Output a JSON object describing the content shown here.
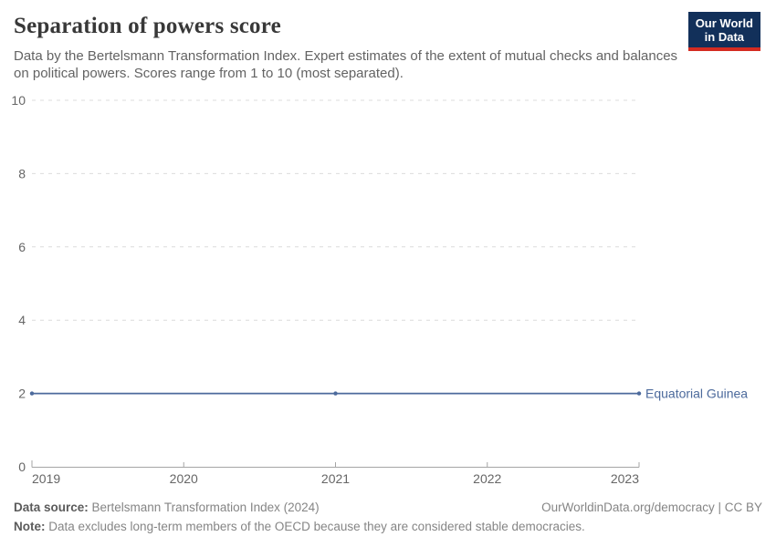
{
  "header": {
    "title": "Separation of powers score",
    "subtitle": "Data by the Bertelsmann Transformation Index. Expert estimates of the extent of mutual checks and balances on political powers. Scores range from 1 to 10 (most separated).",
    "logo": {
      "line1": "Our World",
      "line2": "in Data"
    }
  },
  "chart_data": {
    "type": "line",
    "title": "Separation of powers score",
    "x": [
      2019,
      2021,
      2023
    ],
    "series": [
      {
        "name": "Equatorial Guinea",
        "values": [
          2,
          2,
          2
        ],
        "color": "#4c6a9c"
      }
    ],
    "xlabel": "",
    "ylabel": "",
    "xlim": [
      2019,
      2023
    ],
    "ylim": [
      0,
      10
    ],
    "xticks": [
      2019,
      2020,
      2021,
      2022,
      2023
    ],
    "yticks": [
      0,
      2,
      4,
      6,
      8,
      10
    ],
    "grid": "horizontal-dashed",
    "legend_position": "end-of-line-label",
    "colors": {
      "gridline": "#dcdcdc",
      "axis": "#a5a5a5",
      "tick_label": "#666666"
    }
  },
  "footer": {
    "source_label": "Data source:",
    "source_text": " Bertelsmann Transformation Index (2024)",
    "rights_text": "OurWorldinData.org/democracy | CC BY",
    "note_label": "Note:",
    "note_text": " Data excludes long-term members of the OECD because they are considered stable democracies."
  }
}
